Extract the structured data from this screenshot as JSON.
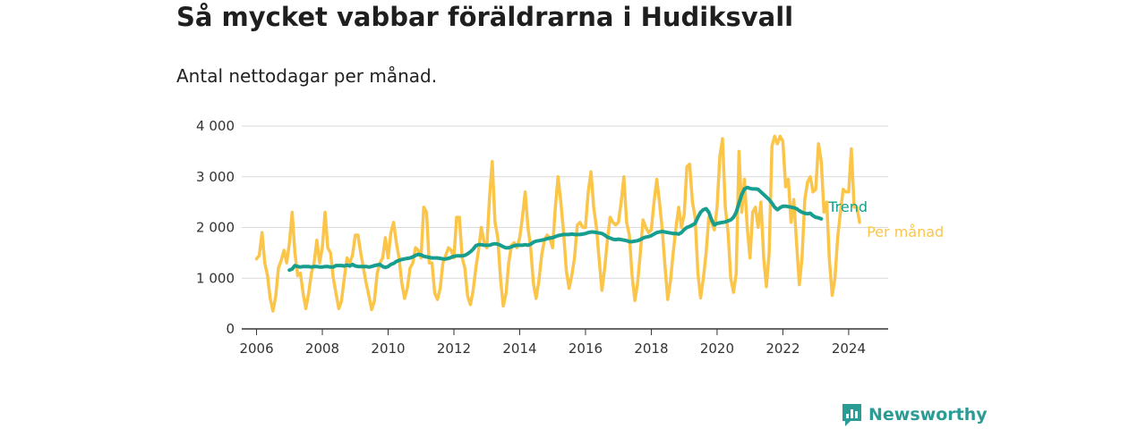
{
  "header": {
    "title": "Så mycket vabbar föräldrarna i Hudiksvall",
    "subtitle": "Antal nettodagar per månad."
  },
  "brand": {
    "name": "Newsworthy",
    "color": "#2b9c95"
  },
  "chart_data": {
    "type": "line",
    "title": "Så mycket vabbar föräldrarna i Hudiksvall",
    "subtitle": "Antal nettodagar per månad.",
    "xlabel": "",
    "ylabel": "",
    "xlim": [
      2005.55,
      2025.2
    ],
    "ylim": [
      0,
      4000
    ],
    "y_ticks": [
      0,
      1000,
      2000,
      3000,
      4000
    ],
    "y_tick_labels": [
      "0",
      "1 000",
      "2 000",
      "3 000",
      "4 000"
    ],
    "x_ticks": [
      2006,
      2008,
      2010,
      2012,
      2014,
      2016,
      2018,
      2020,
      2022,
      2024
    ],
    "x_tick_labels": [
      "2006",
      "2008",
      "2010",
      "2012",
      "2014",
      "2016",
      "2018",
      "2020",
      "2022",
      "2024"
    ],
    "grid": "horizontal",
    "legend": "end-of-line labels",
    "series": [
      {
        "name": "Per månad",
        "color": "#fbc54a",
        "x_start": 2006.0,
        "x_step": 0.08333,
        "values": [
          1380,
          1450,
          1900,
          1300,
          1050,
          600,
          350,
          650,
          1200,
          1350,
          1550,
          1300,
          1700,
          2300,
          1500,
          1050,
          1100,
          700,
          400,
          700,
          1100,
          1300,
          1750,
          1300,
          1600,
          2300,
          1600,
          1500,
          1000,
          700,
          400,
          550,
          1000,
          1400,
          1300,
          1450,
          1850,
          1850,
          1500,
          1200,
          900,
          650,
          380,
          550,
          1100,
          1300,
          1400,
          1800,
          1400,
          1900,
          2100,
          1700,
          1400,
          900,
          600,
          800,
          1200,
          1300,
          1600,
          1550,
          1400,
          2400,
          2300,
          1300,
          1300,
          700,
          580,
          800,
          1300,
          1450,
          1600,
          1550,
          1400,
          2200,
          2200,
          1400,
          1200,
          650,
          480,
          750,
          1200,
          1550,
          2000,
          1700,
          1600,
          2600,
          3300,
          2100,
          1800,
          1000,
          450,
          700,
          1300,
          1650,
          1700,
          1600,
          1800,
          2200,
          2700,
          2000,
          1600,
          900,
          600,
          950,
          1450,
          1750,
          1850,
          1800,
          1600,
          2400,
          3000,
          2500,
          1900,
          1150,
          800,
          1050,
          1400,
          2050,
          2100,
          2000,
          2000,
          2700,
          3100,
          2400,
          2000,
          1350,
          760,
          1200,
          1750,
          2200,
          2100,
          2050,
          2100,
          2500,
          3000,
          2100,
          1850,
          1050,
          560,
          900,
          1500,
          2150,
          2000,
          1900,
          1950,
          2500,
          2950,
          2500,
          1950,
          1250,
          580,
          950,
          1500,
          2000,
          2400,
          2000,
          2250,
          3200,
          3250,
          2500,
          2200,
          1100,
          610,
          1000,
          1500,
          2200,
          2100,
          1950,
          2400,
          3400,
          3750,
          2400,
          1900,
          1000,
          720,
          1100,
          3500,
          2300,
          2950,
          2000,
          1400,
          2300,
          2400,
          2000,
          2500,
          1400,
          830,
          1500,
          3600,
          3800,
          3650,
          3800,
          3700,
          2800,
          2950,
          2100,
          2550,
          1700,
          870,
          1400,
          2550,
          2900,
          3000,
          2700,
          2750,
          3650,
          3300,
          2300,
          2500,
          1350,
          660,
          1000,
          1800,
          2300,
          2750,
          2700,
          2700,
          3550,
          2400,
          2400,
          2100
        ]
      },
      {
        "name": "Trend",
        "color": "#179e8e",
        "x_start": 2007.0,
        "x_step": 0.08333,
        "values": [
          1160,
          1180,
          1250,
          1230,
          1220,
          1230,
          1230,
          1230,
          1220,
          1230,
          1230,
          1220,
          1220,
          1230,
          1230,
          1220,
          1220,
          1250,
          1250,
          1250,
          1240,
          1260,
          1240,
          1270,
          1240,
          1230,
          1230,
          1230,
          1230,
          1220,
          1230,
          1250,
          1260,
          1270,
          1230,
          1210,
          1230,
          1270,
          1290,
          1330,
          1350,
          1370,
          1380,
          1390,
          1400,
          1420,
          1450,
          1470,
          1460,
          1430,
          1420,
          1410,
          1400,
          1400,
          1400,
          1390,
          1380,
          1380,
          1390,
          1410,
          1430,
          1440,
          1440,
          1440,
          1450,
          1480,
          1520,
          1570,
          1640,
          1660,
          1660,
          1650,
          1650,
          1650,
          1670,
          1680,
          1670,
          1650,
          1620,
          1600,
          1600,
          1620,
          1640,
          1650,
          1650,
          1650,
          1660,
          1650,
          1670,
          1710,
          1730,
          1740,
          1750,
          1760,
          1780,
          1790,
          1800,
          1820,
          1840,
          1850,
          1860,
          1860,
          1860,
          1870,
          1860,
          1860,
          1860,
          1870,
          1880,
          1900,
          1910,
          1910,
          1900,
          1890,
          1880,
          1850,
          1810,
          1790,
          1770,
          1760,
          1770,
          1760,
          1750,
          1740,
          1720,
          1720,
          1730,
          1740,
          1760,
          1790,
          1810,
          1820,
          1840,
          1870,
          1900,
          1910,
          1920,
          1910,
          1900,
          1890,
          1880,
          1880,
          1870,
          1900,
          1960,
          2000,
          2020,
          2050,
          2080,
          2200,
          2300,
          2350,
          2370,
          2300,
          2150,
          2050,
          2080,
          2090,
          2100,
          2110,
          2130,
          2150,
          2200,
          2300,
          2480,
          2650,
          2760,
          2790,
          2770,
          2760,
          2760,
          2750,
          2700,
          2650,
          2600,
          2550,
          2480,
          2400,
          2350,
          2390,
          2420,
          2420,
          2410,
          2400,
          2390,
          2370,
          2330,
          2300,
          2280,
          2270,
          2280,
          2230,
          2200,
          2190,
          2170
        ]
      }
    ]
  }
}
